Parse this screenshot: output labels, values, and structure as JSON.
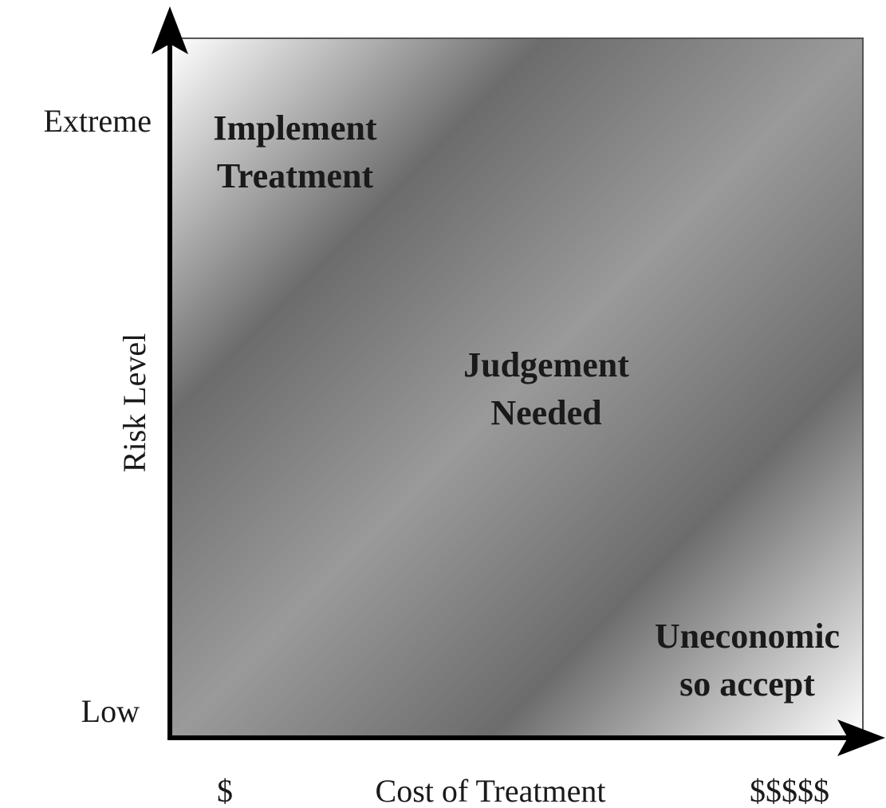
{
  "y_axis": {
    "label": "Risk Level",
    "high": "Extreme",
    "low": "Low"
  },
  "x_axis": {
    "label": "Cost of Treatment",
    "low": "$",
    "high": "$$$$$"
  },
  "regions": [
    {
      "lines": [
        "Implement",
        "Treatment"
      ]
    },
    {
      "lines": [
        "Judgement",
        "Needed"
      ]
    },
    {
      "lines": [
        "Uneconomic",
        "so accept"
      ]
    }
  ]
}
